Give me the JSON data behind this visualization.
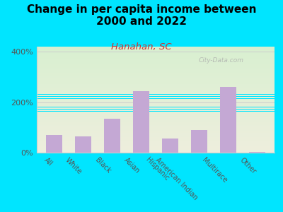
{
  "title": "Change in per capita income between\n2000 and 2022",
  "subtitle": "Hanahan, SC",
  "categories": [
    "All",
    "White",
    "Black",
    "Asian",
    "Hispanic",
    "American Indian",
    "Multirace",
    "Other"
  ],
  "values": [
    70,
    65,
    135,
    245,
    55,
    90,
    260,
    2
  ],
  "bar_color": "#c4a8d4",
  "title_fontsize": 11,
  "subtitle_fontsize": 9.5,
  "subtitle_color": "#cc3333",
  "title_color": "#000000",
  "background_outer": "#00e5ff",
  "background_inner_top": "#d8efd0",
  "background_inner_bottom": "#eeeedd",
  "ytick_labels": [
    "0%",
    "200%",
    "400%"
  ],
  "yticks": [
    0,
    200,
    400
  ],
  "ylim": [
    0,
    420
  ],
  "watermark": "City-Data.com",
  "tick_color": "#888888",
  "axis_color": "#cccccc"
}
